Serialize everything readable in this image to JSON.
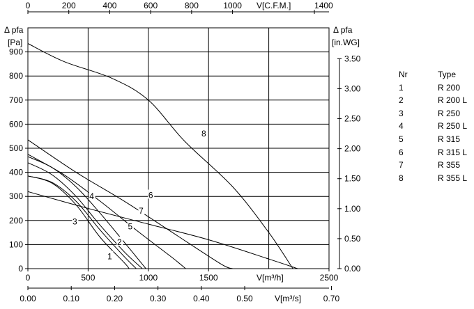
{
  "chart_data": {
    "type": "line",
    "x_axes": {
      "top": {
        "label": "V[C.F.M.]",
        "ticks": [
          "0",
          "200",
          "400",
          "600",
          "800",
          "1000",
          "1400"
        ]
      },
      "bottom1": {
        "label": "V[m³/h]",
        "ticks": [
          "0",
          "500",
          "1000",
          "1500",
          "2500"
        ],
        "range": [
          0,
          2500
        ]
      },
      "bottom2": {
        "label": "V[m³/s]",
        "ticks": [
          "0.00",
          "0.10",
          "0.20",
          "0.30",
          "0.40",
          "0.50",
          "0.70"
        ]
      }
    },
    "y_axes": {
      "left": {
        "label": "Δ pfa",
        "unit": "[Pa]",
        "ticks": [
          "0",
          "100",
          "200",
          "300",
          "400",
          "500",
          "600",
          "700",
          "800",
          "900"
        ],
        "range": [
          0,
          1000
        ]
      },
      "right": {
        "label": "Δ pfa",
        "unit": "[in.WG]",
        "ticks": [
          "0.00",
          "0.50",
          "1.00",
          "1.50",
          "2.00",
          "2.50",
          "3.00",
          "3.50"
        ]
      }
    },
    "grid": true,
    "series": [
      {
        "name": "1",
        "points": [
          [
            0,
            385
          ],
          [
            200,
            355
          ],
          [
            400,
            265
          ],
          [
            600,
            130
          ],
          [
            800,
            25
          ],
          [
            840,
            0
          ]
        ]
      },
      {
        "name": "2",
        "points": [
          [
            0,
            385
          ],
          [
            200,
            358
          ],
          [
            400,
            280
          ],
          [
            600,
            160
          ],
          [
            800,
            50
          ],
          [
            900,
            0
          ]
        ]
      },
      {
        "name": "3",
        "points": [
          [
            0,
            440
          ],
          [
            200,
            390
          ],
          [
            400,
            300
          ],
          [
            600,
            180
          ],
          [
            800,
            70
          ],
          [
            950,
            0
          ]
        ]
      },
      {
        "name": "4",
        "points": [
          [
            0,
            465
          ],
          [
            200,
            420
          ],
          [
            400,
            340
          ],
          [
            600,
            230
          ],
          [
            800,
            110
          ],
          [
            980,
            0
          ]
        ]
      },
      {
        "name": "5",
        "points": [
          [
            0,
            475
          ],
          [
            300,
            390
          ],
          [
            600,
            280
          ],
          [
            900,
            160
          ],
          [
            1200,
            45
          ],
          [
            1310,
            0
          ]
        ]
      },
      {
        "name": "6",
        "points": [
          [
            0,
            535
          ],
          [
            400,
            400
          ],
          [
            800,
            280
          ],
          [
            1200,
            150
          ],
          [
            1600,
            20
          ],
          [
            1700,
            0
          ]
        ]
      },
      {
        "name": "7",
        "points": [
          [
            0,
            320
          ],
          [
            500,
            250
          ],
          [
            1000,
            185
          ],
          [
            1500,
            120
          ],
          [
            2000,
            40
          ],
          [
            2240,
            0
          ]
        ]
      },
      {
        "name": "8",
        "points": [
          [
            0,
            935
          ],
          [
            300,
            860
          ],
          [
            700,
            790
          ],
          [
            1000,
            700
          ],
          [
            1300,
            530
          ],
          [
            1700,
            340
          ],
          [
            2000,
            150
          ],
          [
            2200,
            0
          ]
        ]
      }
    ],
    "curve_labels": [
      {
        "text": "1",
        "x": 680,
        "y": 50
      },
      {
        "text": "2",
        "x": 760,
        "y": 110
      },
      {
        "text": "3",
        "x": 390,
        "y": 195
      },
      {
        "text": "4",
        "x": 530,
        "y": 300
      },
      {
        "text": "5",
        "x": 850,
        "y": 175
      },
      {
        "text": "6",
        "x": 1020,
        "y": 305
      },
      {
        "text": "7",
        "x": 940,
        "y": 240
      },
      {
        "text": "8",
        "x": 1460,
        "y": 560
      }
    ],
    "legend": {
      "headers": {
        "nr": "Nr",
        "type": "Type"
      },
      "rows": [
        {
          "nr": "1",
          "type": "R 200"
        },
        {
          "nr": "2",
          "type": "R 200 L"
        },
        {
          "nr": "3",
          "type": "R 250"
        },
        {
          "nr": "4",
          "type": "R 250 L"
        },
        {
          "nr": "5",
          "type": "R 315"
        },
        {
          "nr": "6",
          "type": "R 315 L"
        },
        {
          "nr": "7",
          "type": "R 355"
        },
        {
          "nr": "8",
          "type": "R 355 L"
        }
      ]
    }
  }
}
